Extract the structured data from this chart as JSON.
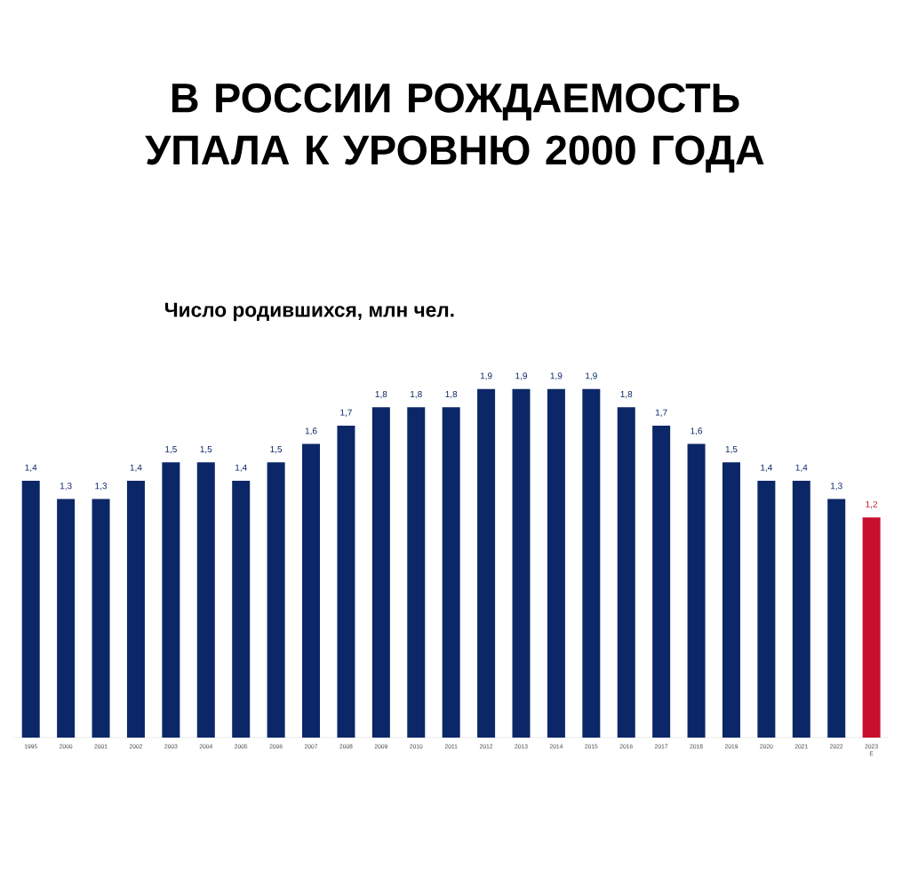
{
  "chart_data": {
    "type": "bar",
    "title": "В РОССИИ РОЖДАЕМОСТЬ УПАЛА К УРОВНЮ 2000 ГОДА",
    "subtitle": "Число родившихся, млн чел.",
    "categories": [
      "1995",
      "2000",
      "2001",
      "2002",
      "2003",
      "2004",
      "2005",
      "2006",
      "2007",
      "2008",
      "2009",
      "2010",
      "2011",
      "2012",
      "2013",
      "2014",
      "2015",
      "2016",
      "2017",
      "2018",
      "2019",
      "2020",
      "2021",
      "2022",
      "2023 E"
    ],
    "values": [
      1.4,
      1.3,
      1.3,
      1.4,
      1.5,
      1.5,
      1.4,
      1.5,
      1.6,
      1.7,
      1.8,
      1.8,
      1.8,
      1.9,
      1.9,
      1.9,
      1.9,
      1.8,
      1.7,
      1.6,
      1.5,
      1.4,
      1.4,
      1.3,
      1.2
    ],
    "value_labels": [
      "1,4",
      "1,3",
      "1,3",
      "1,4",
      "1,5",
      "1,5",
      "1,4",
      "1,5",
      "1,6",
      "1,7",
      "1,8",
      "1,8",
      "1,8",
      "1,9",
      "1,9",
      "1,9",
      "1,9",
      "1,8",
      "1,7",
      "1,6",
      "1,5",
      "1,4",
      "1,4",
      "1,3",
      "1,2"
    ],
    "colors": [
      "#0c2768",
      "#0c2768",
      "#0c2768",
      "#0c2768",
      "#0c2768",
      "#0c2768",
      "#0c2768",
      "#0c2768",
      "#0c2768",
      "#0c2768",
      "#0c2768",
      "#0c2768",
      "#0c2768",
      "#0c2768",
      "#0c2768",
      "#0c2768",
      "#0c2768",
      "#0c2768",
      "#0c2768",
      "#0c2768",
      "#0c2768",
      "#0c2768",
      "#0c2768",
      "#0c2768",
      "#c8102e"
    ]
  }
}
